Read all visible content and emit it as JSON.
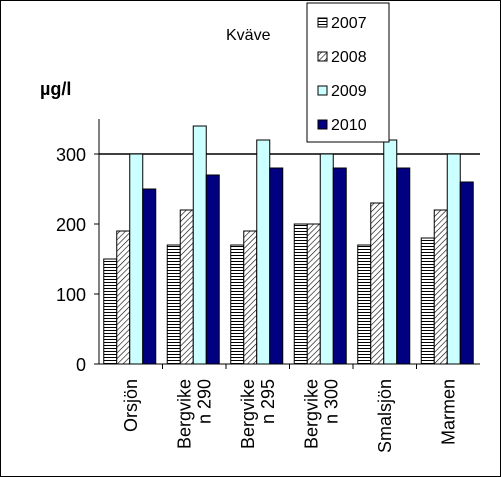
{
  "chart_data": {
    "type": "bar",
    "title": "Kväve",
    "ylabel": "µg/l",
    "xlabel": "",
    "categories": [
      "Orsjön",
      "Bergvike n 290",
      "Bergvike n 295",
      "Bergvike n 300",
      "Smalsjön",
      "Marmen"
    ],
    "category_lines": [
      [
        "Orsjön"
      ],
      [
        "Bergvike",
        "n 290"
      ],
      [
        "Bergvike",
        "n 295"
      ],
      [
        "Bergvike",
        "n 300"
      ],
      [
        "Smalsjön"
      ],
      [
        "Marmen"
      ]
    ],
    "series": [
      {
        "name": "2007",
        "values": [
          150,
          170,
          170,
          200,
          170,
          180
        ],
        "color": "#ffffff",
        "pattern": "horizontal-lines"
      },
      {
        "name": "2008",
        "values": [
          190,
          220,
          190,
          200,
          230,
          220
        ],
        "color": "#ffffff",
        "pattern": "diagonal-lines"
      },
      {
        "name": "2009",
        "values": [
          300,
          340,
          320,
          300,
          320,
          300
        ],
        "color": "#ccffff",
        "pattern": "solid"
      },
      {
        "name": "2010",
        "values": [
          250,
          270,
          280,
          280,
          280,
          260
        ],
        "color": "#000080",
        "pattern": "solid"
      }
    ],
    "ylim": [
      0,
      350
    ],
    "yticks": [
      0,
      100,
      200,
      300
    ],
    "reference_line": 300,
    "grid": false,
    "legend_position": "top-right"
  }
}
